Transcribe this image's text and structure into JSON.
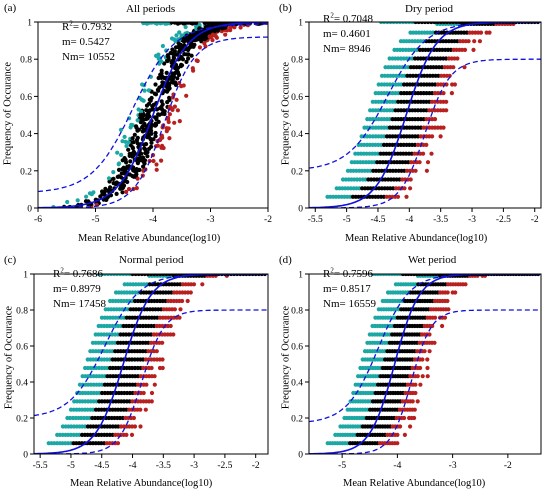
{
  "colors": {
    "upper_points": "#1ba8a4",
    "middle_points": "#000000",
    "lower_points": "#b82020",
    "fit_line": "#1010e0",
    "ci_line": "#1010e0"
  },
  "chart_data": [
    {
      "type": "scatter",
      "panel_label": "(a)",
      "title": "All periods",
      "xlabel": "Mean Relative Abundance(log10)",
      "ylabel": "Frequency of Occurance",
      "xlim": [
        -6,
        -2
      ],
      "ylim": [
        0,
        1
      ],
      "xticks": [
        -6,
        -5,
        -4,
        -3,
        -2
      ],
      "xtick_labels": [
        "-6",
        "-5",
        "-4",
        "-3",
        "-2"
      ],
      "yticks": [
        0,
        0.2,
        0.4,
        0.6,
        0.8,
        1
      ],
      "ytick_labels": [
        "0",
        "0.2",
        "0.4",
        "0.6",
        "0.8",
        "1"
      ],
      "stats": {
        "R2_label": "R",
        "R2_value": "= 0.7932",
        "m": "m= 0.5427",
        "Nm": "Nm= 10552"
      },
      "fit": {
        "center": -4.0,
        "k": 3.3
      },
      "ci_upper": {
        "center": -4.35,
        "k": 2.8,
        "floor": 0.08,
        "ceil": 0.99
      },
      "ci_lower": {
        "center": -3.8,
        "k": 3.8,
        "floor": 0.0,
        "ceil": 0.92
      },
      "point_density": "dense",
      "grid": false
    },
    {
      "type": "scatter",
      "panel_label": "(b)",
      "title": "Dry period",
      "xlabel": "Mean Relative Abundance(log10)",
      "ylabel": "Frequency of Occurance",
      "xlim": [
        -5.6,
        -1.9
      ],
      "ylim": [
        0,
        1
      ],
      "xticks": [
        -5.5,
        -5,
        -4.5,
        -4,
        -3.5,
        -3,
        -2.5,
        -2
      ],
      "xtick_labels": [
        "-5.5",
        "-5",
        "-4.5",
        "-4",
        "-3.5",
        "-3",
        "-2.5",
        "-2"
      ],
      "yticks": [
        0,
        0.2,
        0.4,
        0.6,
        0.8,
        1
      ],
      "ytick_labels": [
        "0",
        "0.2",
        "0.4",
        "0.6",
        "0.8",
        "1"
      ],
      "stats": {
        "R2_label": "R",
        "R2_value": "= 0.7048",
        "m": "m= 0.4601",
        "Nm": "Nm= 8946"
      },
      "fit": {
        "center": -4.05,
        "k": 4.2
      },
      "ci_upper": {
        "center": -4.35,
        "k": 3.2,
        "floor": 0.2,
        "ceil": 1.0
      },
      "ci_lower": {
        "center": -3.75,
        "k": 5.0,
        "floor": 0.0,
        "ceil": 0.8
      },
      "point_density": "banded",
      "grid": false
    },
    {
      "type": "scatter",
      "panel_label": "(c)",
      "title": "Normal period",
      "xlabel": "Mean Relative Abundance(log10)",
      "ylabel": "Frequency of Occurance",
      "xlim": [
        -5.6,
        -1.8
      ],
      "ylim": [
        0,
        1
      ],
      "xticks": [
        -5.5,
        -5,
        -4.5,
        -4,
        -3.5,
        -3,
        -2.5,
        -2
      ],
      "xtick_labels": [
        "-5.5",
        "-5",
        "-4.5",
        "-4",
        "-3.5",
        "-3",
        "-2.5",
        "-2"
      ],
      "yticks": [
        0,
        0.2,
        0.4,
        0.6,
        0.8,
        1
      ],
      "ytick_labels": [
        "0",
        "0.2",
        "0.4",
        "0.6",
        "0.8",
        "1"
      ],
      "stats": {
        "R2_label": "R",
        "R2_value": "= 0.7686",
        "m": "m= 0.8979",
        "Nm": "Nm= 17458"
      },
      "fit": {
        "center": -4.15,
        "k": 4.5
      },
      "ci_upper": {
        "center": -4.45,
        "k": 3.5,
        "floor": 0.2,
        "ceil": 1.0
      },
      "ci_lower": {
        "center": -3.85,
        "k": 5.5,
        "floor": 0.0,
        "ceil": 0.8
      },
      "point_density": "banded",
      "grid": false
    },
    {
      "type": "scatter",
      "panel_label": "(d)",
      "title": "Wet period",
      "xlabel": "Mean Relative Abundance(log10)",
      "ylabel": "Frequency of Occurance",
      "xlim": [
        -5.6,
        -1.4
      ],
      "ylim": [
        0,
        1
      ],
      "xticks": [
        -5,
        -4,
        -3,
        -2
      ],
      "xtick_labels": [
        "-5",
        "-4",
        "-3",
        "-2"
      ],
      "yticks": [
        0,
        0.2,
        0.4,
        0.6,
        0.8,
        1
      ],
      "ytick_labels": [
        "0",
        "0.2",
        "0.4",
        "0.6",
        "0.8",
        "1"
      ],
      "stats": {
        "R2_label": "R",
        "R2_value": "= 0.7596",
        "m": "m= 0.8517",
        "Nm": "Nm= 16559"
      },
      "fit": {
        "center": -4.05,
        "k": 4.5
      },
      "ci_upper": {
        "center": -4.35,
        "k": 3.5,
        "floor": 0.17,
        "ceil": 1.0
      },
      "ci_lower": {
        "center": -3.75,
        "k": 5.5,
        "floor": 0.0,
        "ceil": 0.8
      },
      "point_density": "banded",
      "grid": false
    }
  ]
}
